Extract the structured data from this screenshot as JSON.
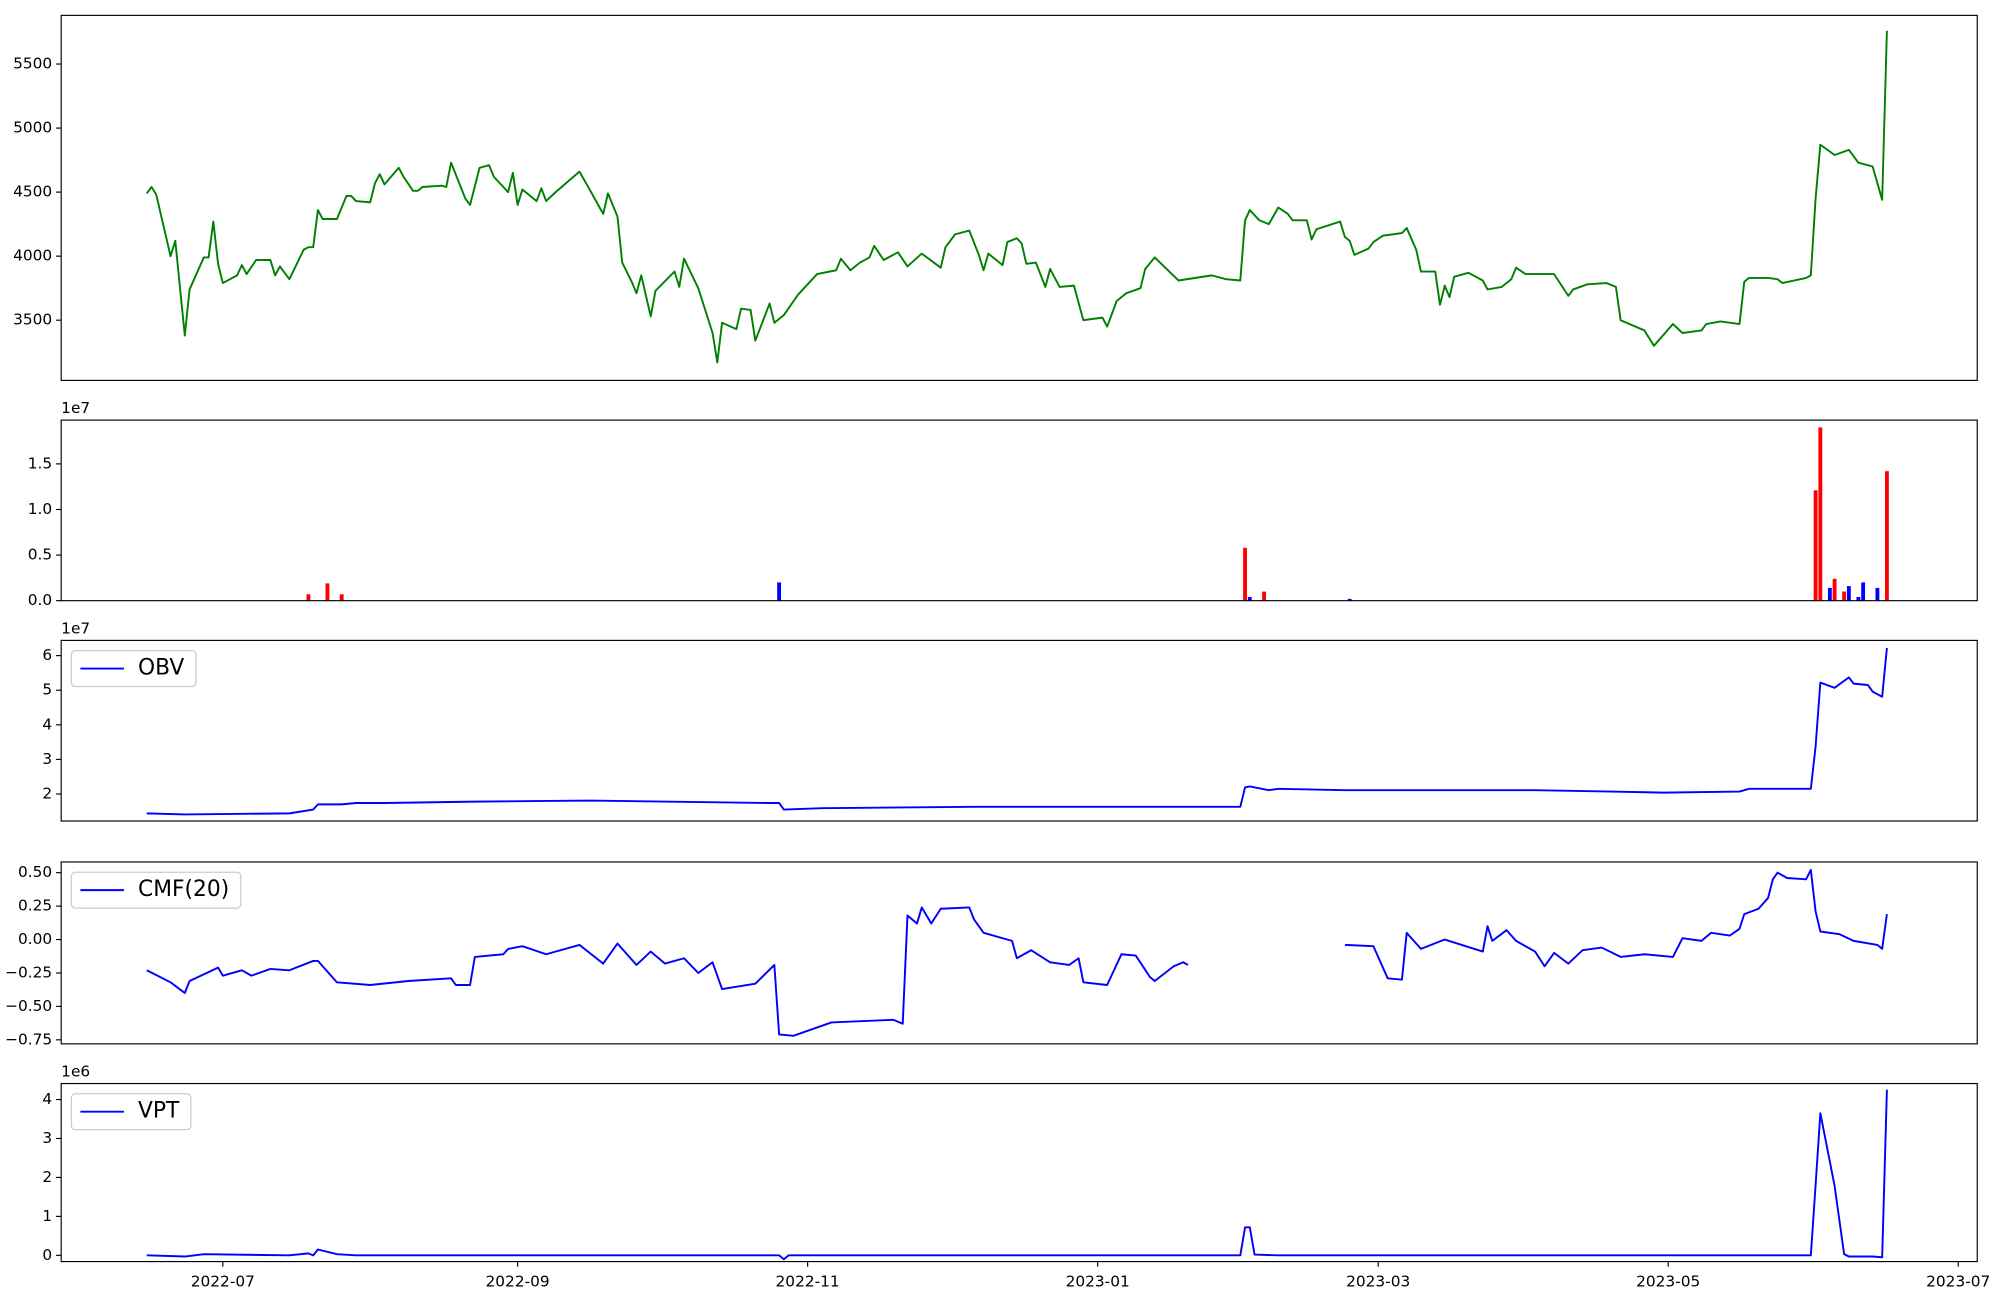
{
  "chart_data": [
    {
      "type": "line",
      "x": [
        "2022-06-15",
        "2022-06-16",
        "2022-06-17",
        "2022-06-20",
        "2022-06-21",
        "2022-06-23",
        "2022-06-24",
        "2022-06-27",
        "2022-06-28",
        "2022-06-29",
        "2022-06-30",
        "2022-07-01",
        "2022-07-04",
        "2022-07-05",
        "2022-07-06",
        "2022-07-08",
        "2022-07-11",
        "2022-07-12",
        "2022-07-13",
        "2022-07-15",
        "2022-07-18",
        "2022-07-19",
        "2022-07-20",
        "2022-07-21",
        "2022-07-22",
        "2022-07-25",
        "2022-07-27",
        "2022-07-28",
        "2022-07-29",
        "2022-08-01",
        "2022-08-02",
        "2022-08-03",
        "2022-08-04",
        "2022-08-07",
        "2022-08-08",
        "2022-08-10",
        "2022-08-11",
        "2022-08-12",
        "2022-08-16",
        "2022-08-17",
        "2022-08-18",
        "2022-08-21",
        "2022-08-22",
        "2022-08-24",
        "2022-08-26",
        "2022-08-27",
        "2022-08-30",
        "2022-08-31",
        "2022-09-01",
        "2022-09-02",
        "2022-09-05",
        "2022-09-06",
        "2022-09-07",
        "2022-09-09",
        "2022-09-14",
        "2022-09-16",
        "2022-09-19",
        "2022-09-20",
        "2022-09-22",
        "2022-09-23",
        "2022-09-25",
        "2022-09-26",
        "2022-09-27",
        "2022-09-29",
        "2022-09-30",
        "2022-10-04",
        "2022-10-05",
        "2022-10-06",
        "2022-10-09",
        "2022-10-12",
        "2022-10-13",
        "2022-10-14",
        "2022-10-17",
        "2022-10-18",
        "2022-10-20",
        "2022-10-21",
        "2022-10-24",
        "2022-10-25",
        "2022-10-27",
        "2022-10-30",
        "2022-11-03",
        "2022-11-07",
        "2022-11-08",
        "2022-11-10",
        "2022-11-12",
        "2022-11-14",
        "2022-11-15",
        "2022-11-17",
        "2022-11-20",
        "2022-11-22",
        "2022-11-25",
        "2022-11-29",
        "2022-11-30",
        "2022-12-02",
        "2022-12-05",
        "2022-12-07",
        "2022-12-08",
        "2022-12-09",
        "2022-12-12",
        "2022-12-13",
        "2022-12-15",
        "2022-12-16",
        "2022-12-17",
        "2022-12-19",
        "2022-12-21",
        "2022-12-22",
        "2022-12-24",
        "2022-12-27",
        "2022-12-29",
        "2023-01-02",
        "2023-01-03",
        "2023-01-05",
        "2023-01-07",
        "2023-01-10",
        "2023-01-11",
        "2023-01-13",
        "2023-01-18",
        "2023-01-25",
        "2023-01-28",
        "2023-01-31",
        "2023-02-01",
        "2023-02-02",
        "2023-02-04",
        "2023-02-06",
        "2023-02-08",
        "2023-02-10",
        "2023-02-11",
        "2023-02-14",
        "2023-02-15",
        "2023-02-16",
        "2023-02-21",
        "2023-02-22",
        "2023-02-23",
        "2023-02-24",
        "2023-02-27",
        "2023-02-28",
        "2023-03-02",
        "2023-03-06",
        "2023-03-07",
        "2023-03-09",
        "2023-03-10",
        "2023-03-13",
        "2023-03-14",
        "2023-03-15",
        "2023-03-16",
        "2023-03-17",
        "2023-03-20",
        "2023-03-23",
        "2023-03-24",
        "2023-03-27",
        "2023-03-29",
        "2023-03-30",
        "2023-04-01",
        "2023-04-07",
        "2023-04-10",
        "2023-04-11",
        "2023-04-14",
        "2023-04-18",
        "2023-04-20",
        "2023-04-21",
        "2023-04-26",
        "2023-04-28",
        "2023-05-02",
        "2023-05-04",
        "2023-05-08",
        "2023-05-09",
        "2023-05-12",
        "2023-05-16",
        "2023-05-17",
        "2023-05-18",
        "2023-05-22",
        "2023-05-24",
        "2023-05-25",
        "2023-05-30",
        "2023-05-31",
        "2023-06-01",
        "2023-06-02",
        "2023-06-05",
        "2023-06-08",
        "2023-06-10",
        "2023-06-13",
        "2023-06-15",
        "2023-06-16"
      ],
      "series": [
        {
          "color": "green",
          "values": [
            4490,
            4540,
            4480,
            4000,
            4120,
            3380,
            3740,
            3990,
            3990,
            4270,
            3940,
            3790,
            3850,
            3930,
            3860,
            3970,
            3970,
            3850,
            3920,
            3820,
            4050,
            4070,
            4070,
            4360,
            4290,
            4290,
            4470,
            4470,
            4430,
            4420,
            4570,
            4640,
            4560,
            4690,
            4620,
            4510,
            4510,
            4540,
            4550,
            4540,
            4730,
            4450,
            4400,
            4690,
            4710,
            4620,
            4500,
            4650,
            4400,
            4520,
            4430,
            4530,
            4430,
            4500,
            4660,
            4530,
            4330,
            4490,
            4310,
            3950,
            3800,
            3710,
            3850,
            3530,
            3730,
            3880,
            3760,
            3980,
            3750,
            3400,
            3170,
            3480,
            3430,
            3590,
            3580,
            3340,
            3630,
            3480,
            3540,
            3700,
            3860,
            3890,
            3980,
            3890,
            3950,
            3990,
            4080,
            3970,
            4030,
            3920,
            4020,
            3910,
            4070,
            4170,
            4200,
            4010,
            3890,
            4020,
            3930,
            4110,
            4140,
            4100,
            3940,
            3950,
            3760,
            3900,
            3760,
            3770,
            3500,
            3520,
            3450,
            3650,
            3710,
            3750,
            3900,
            3990,
            3810,
            3850,
            3820,
            3810,
            4280,
            4360,
            4280,
            4250,
            4380,
            4330,
            4280,
            4280,
            4130,
            4210,
            4270,
            4150,
            4120,
            4010,
            4060,
            4110,
            4160,
            4180,
            4220,
            4050,
            3880,
            3880,
            3620,
            3770,
            3680,
            3840,
            3870,
            3810,
            3740,
            3760,
            3820,
            3910,
            3860,
            3860,
            3690,
            3740,
            3780,
            3790,
            3760,
            3500,
            3420,
            3300,
            3470,
            3400,
            3420,
            3470,
            3490,
            3470,
            3800,
            3830,
            3830,
            3820,
            3790,
            3830,
            3850,
            4450,
            4870,
            4790,
            4830,
            4730,
            4700,
            4440,
            5760
          ]
        }
      ],
      "xlim": [
        "2022-05-28",
        "2023-07-05"
      ],
      "ylim": [
        3030,
        5880
      ],
      "yticks": [
        3500,
        4000,
        4500,
        5000,
        5500
      ]
    },
    {
      "type": "bar",
      "offset_label": "1e7",
      "series": [
        {
          "color": "red",
          "x": [
            "2022-07-19",
            "2022-07-23",
            "2022-07-26",
            "2023-02-01",
            "2023-02-05",
            "2023-06-01",
            "2023-06-02",
            "2023-06-05",
            "2023-06-07",
            "2023-06-16"
          ],
          "values": [
            0.07,
            0.19,
            0.07,
            0.58,
            0.1,
            1.21,
            1.9,
            0.24,
            0.1,
            1.42
          ]
        },
        {
          "color": "blue",
          "x": [
            "2022-10-26",
            "2023-02-02",
            "2023-02-23",
            "2023-06-04",
            "2023-06-08",
            "2023-06-10",
            "2023-06-11",
            "2023-06-14"
          ],
          "values": [
            0.2,
            0.04,
            0.02,
            0.14,
            0.16,
            0.04,
            0.2,
            0.14
          ]
        }
      ],
      "xlim": [
        "2022-05-28",
        "2023-07-05"
      ],
      "ylim": [
        0,
        1.98
      ],
      "yticks": [
        {
          "value": 0,
          "label": "0.0"
        },
        0.5,
        {
          "value": 1,
          "label": "1.0"
        },
        1.5
      ]
    },
    {
      "type": "line",
      "offset_label": "1e7",
      "legend": "upper left",
      "x": [
        "2022-06-15",
        "2022-06-23",
        "2022-07-15",
        "2022-07-20",
        "2022-07-21",
        "2022-07-26",
        "2022-07-29",
        "2022-08-04",
        "2022-08-23",
        "2022-09-16",
        "2022-10-24",
        "2022-10-26",
        "2022-10-27",
        "2022-11-04",
        "2022-12-06",
        "2023-01-12",
        "2023-01-31",
        "2023-02-01",
        "2023-02-02",
        "2023-02-06",
        "2023-02-08",
        "2023-02-22",
        "2023-04-03",
        "2023-04-19",
        "2023-04-30",
        "2023-05-16",
        "2023-05-18",
        "2023-05-31",
        "2023-06-01",
        "2023-06-02",
        "2023-06-05",
        "2023-06-08",
        "2023-06-09",
        "2023-06-12",
        "2023-06-13",
        "2023-06-15",
        "2023-06-16"
      ],
      "series": [
        {
          "name": "OBV",
          "color": "blue",
          "values": [
            1.44,
            1.41,
            1.44,
            1.55,
            1.7,
            1.7,
            1.74,
            1.74,
            1.78,
            1.81,
            1.74,
            1.74,
            1.55,
            1.59,
            1.63,
            1.63,
            1.63,
            2.19,
            2.22,
            2.11,
            2.15,
            2.11,
            2.11,
            2.07,
            2.04,
            2.07,
            2.15,
            2.15,
            3.37,
            5.22,
            5.07,
            5.37,
            5.19,
            5.15,
            4.96,
            4.81,
            6.22
          ]
        }
      ],
      "xlim": [
        "2022-05-28",
        "2023-07-05"
      ],
      "ylim": [
        1.22,
        6.44
      ],
      "yticks": [
        2,
        3,
        4,
        5,
        6
      ]
    },
    {
      "type": "line",
      "legend": "upper left",
      "x": [
        "2022-06-15",
        "2022-06-20",
        "2022-06-23",
        "2022-06-24",
        "2022-06-30",
        "2022-07-01",
        "2022-07-05",
        "2022-07-07",
        "2022-07-11",
        "2022-07-15",
        "2022-07-20",
        "2022-07-21",
        "2022-07-25",
        "2022-08-01",
        "2022-08-09",
        "2022-08-18",
        "2022-08-19",
        "2022-08-22",
        "2022-08-23",
        "2022-08-29",
        "2022-08-30",
        "2022-09-02",
        "2022-09-07",
        "2022-09-14",
        "2022-09-19",
        "2022-09-22",
        "2022-09-26",
        "2022-09-29",
        "2022-10-02",
        "2022-10-06",
        "2022-10-09",
        "2022-10-12",
        "2022-10-14",
        "2022-10-21",
        "2022-10-25",
        "2022-10-26",
        "2022-10-29",
        "2022-11-06",
        "2022-11-19",
        "2022-11-21",
        "2022-11-22",
        "2022-11-24",
        "2022-11-25",
        "2022-11-27",
        "2022-11-29",
        "2022-12-05",
        "2022-12-06",
        "2022-12-08",
        "2022-12-14",
        "2022-12-15",
        "2022-12-18",
        "2022-12-22",
        "2022-12-26",
        "2022-12-28",
        "2022-12-29",
        "2023-01-03",
        "2023-01-06",
        "2023-01-09",
        "2023-01-12",
        "2023-01-13",
        "2023-01-17",
        "2023-01-19",
        "2023-01-20",
        "2023-02-01",
        "2023-02-22",
        "2023-02-28",
        "2023-03-03",
        "2023-03-06",
        "2023-03-07",
        "2023-03-10",
        "2023-03-15",
        "2023-03-23",
        "2023-03-24",
        "2023-03-25",
        "2023-03-28",
        "2023-03-30",
        "2023-04-03",
        "2023-04-05",
        "2023-04-07",
        "2023-04-10",
        "2023-04-13",
        "2023-04-17",
        "2023-04-21",
        "2023-04-26",
        "2023-05-02",
        "2023-05-04",
        "2023-05-08",
        "2023-05-10",
        "2023-05-14",
        "2023-05-16",
        "2023-05-17",
        "2023-05-20",
        "2023-05-22",
        "2023-05-23",
        "2023-05-24",
        "2023-05-26",
        "2023-05-30",
        "2023-05-31",
        "2023-06-01",
        "2023-06-02",
        "2023-06-06",
        "2023-06-09",
        "2023-06-14",
        "2023-06-15",
        "2023-06-16"
      ],
      "series": [
        {
          "name": "CMF(20)",
          "color": "blue",
          "values": [
            -0.23,
            -0.32,
            -0.4,
            -0.31,
            -0.21,
            -0.27,
            -0.23,
            -0.27,
            -0.22,
            -0.23,
            -0.16,
            -0.16,
            -0.32,
            -0.34,
            -0.31,
            -0.29,
            -0.34,
            -0.34,
            -0.13,
            -0.11,
            -0.07,
            -0.05,
            -0.11,
            -0.04,
            -0.18,
            -0.03,
            -0.19,
            -0.09,
            -0.18,
            -0.14,
            -0.25,
            -0.17,
            -0.37,
            -0.33,
            -0.19,
            -0.71,
            -0.72,
            -0.62,
            -0.6,
            -0.63,
            0.18,
            0.12,
            0.24,
            0.12,
            0.23,
            0.24,
            0.15,
            0.05,
            -0.01,
            -0.14,
            -0.08,
            -0.17,
            -0.19,
            -0.14,
            -0.32,
            -0.34,
            -0.11,
            -0.12,
            -0.28,
            -0.31,
            -0.2,
            -0.17,
            -0.19,
            null,
            -0.04,
            -0.05,
            -0.29,
            -0.3,
            0.05,
            -0.07,
            0.0,
            -0.09,
            0.1,
            -0.01,
            0.07,
            -0.01,
            -0.09,
            -0.2,
            -0.1,
            -0.18,
            -0.08,
            -0.06,
            -0.13,
            -0.11,
            -0.13,
            0.01,
            -0.01,
            0.05,
            0.03,
            0.08,
            0.19,
            0.23,
            0.31,
            0.45,
            0.5,
            0.46,
            0.45,
            0.52,
            0.21,
            0.06,
            0.04,
            -0.01,
            -0.04,
            -0.07,
            0.19
          ]
        }
      ],
      "xlim": [
        "2022-05-28",
        "2023-07-05"
      ],
      "ylim": [
        -0.78,
        0.58
      ],
      "yticks": [
        {
          "value": -0.75,
          "label": "−0.75"
        },
        {
          "value": -0.5,
          "label": "−0.50"
        },
        {
          "value": -0.25,
          "label": "−0.25"
        },
        {
          "value": 0,
          "label": "0.00"
        },
        0.25,
        {
          "value": 0.5,
          "label": "0.50"
        }
      ]
    },
    {
      "type": "line",
      "offset_label": "1e6",
      "legend": "upper left",
      "x": [
        "2022-06-15",
        "2022-06-23",
        "2022-06-27",
        "2022-07-15",
        "2022-07-19",
        "2022-07-20",
        "2022-07-21",
        "2022-07-25",
        "2022-07-29",
        "2022-10-24",
        "2022-10-26",
        "2022-10-27",
        "2022-10-28",
        "2023-01-31",
        "2023-02-01",
        "2023-02-02",
        "2023-02-03",
        "2023-02-08",
        "2023-05-31",
        "2023-06-01",
        "2023-06-02",
        "2023-06-05",
        "2023-06-07",
        "2023-06-08",
        "2023-06-13",
        "2023-06-15",
        "2023-06-16"
      ],
      "series": [
        {
          "name": "VPT",
          "color": "blue",
          "values": [
            0.0,
            -0.03,
            0.03,
            0.0,
            0.05,
            0.0,
            0.15,
            0.03,
            0.0,
            0.0,
            0.0,
            -0.1,
            0.0,
            0.0,
            0.72,
            0.72,
            0.02,
            0.0,
            0.0,
            1.8,
            3.65,
            1.78,
            0.03,
            -0.03,
            -0.03,
            -0.05,
            4.25
          ]
        }
      ],
      "xlim": [
        "2022-05-28",
        "2023-07-05"
      ],
      "ylim": [
        -0.16,
        4.41
      ],
      "yticks": [
        0,
        1,
        2,
        3,
        4
      ],
      "xticks": [
        {
          "value": "2022-07-01",
          "label": "2022-07"
        },
        {
          "value": "2022-09-01",
          "label": "2022-09"
        },
        {
          "value": "2022-11-01",
          "label": "2022-11"
        },
        {
          "value": "2023-01-01",
          "label": "2023-01"
        },
        {
          "value": "2023-03-01",
          "label": "2023-03"
        },
        {
          "value": "2023-05-01",
          "label": "2023-05"
        },
        {
          "value": "2023-07-01",
          "label": "2023-07"
        }
      ]
    }
  ]
}
